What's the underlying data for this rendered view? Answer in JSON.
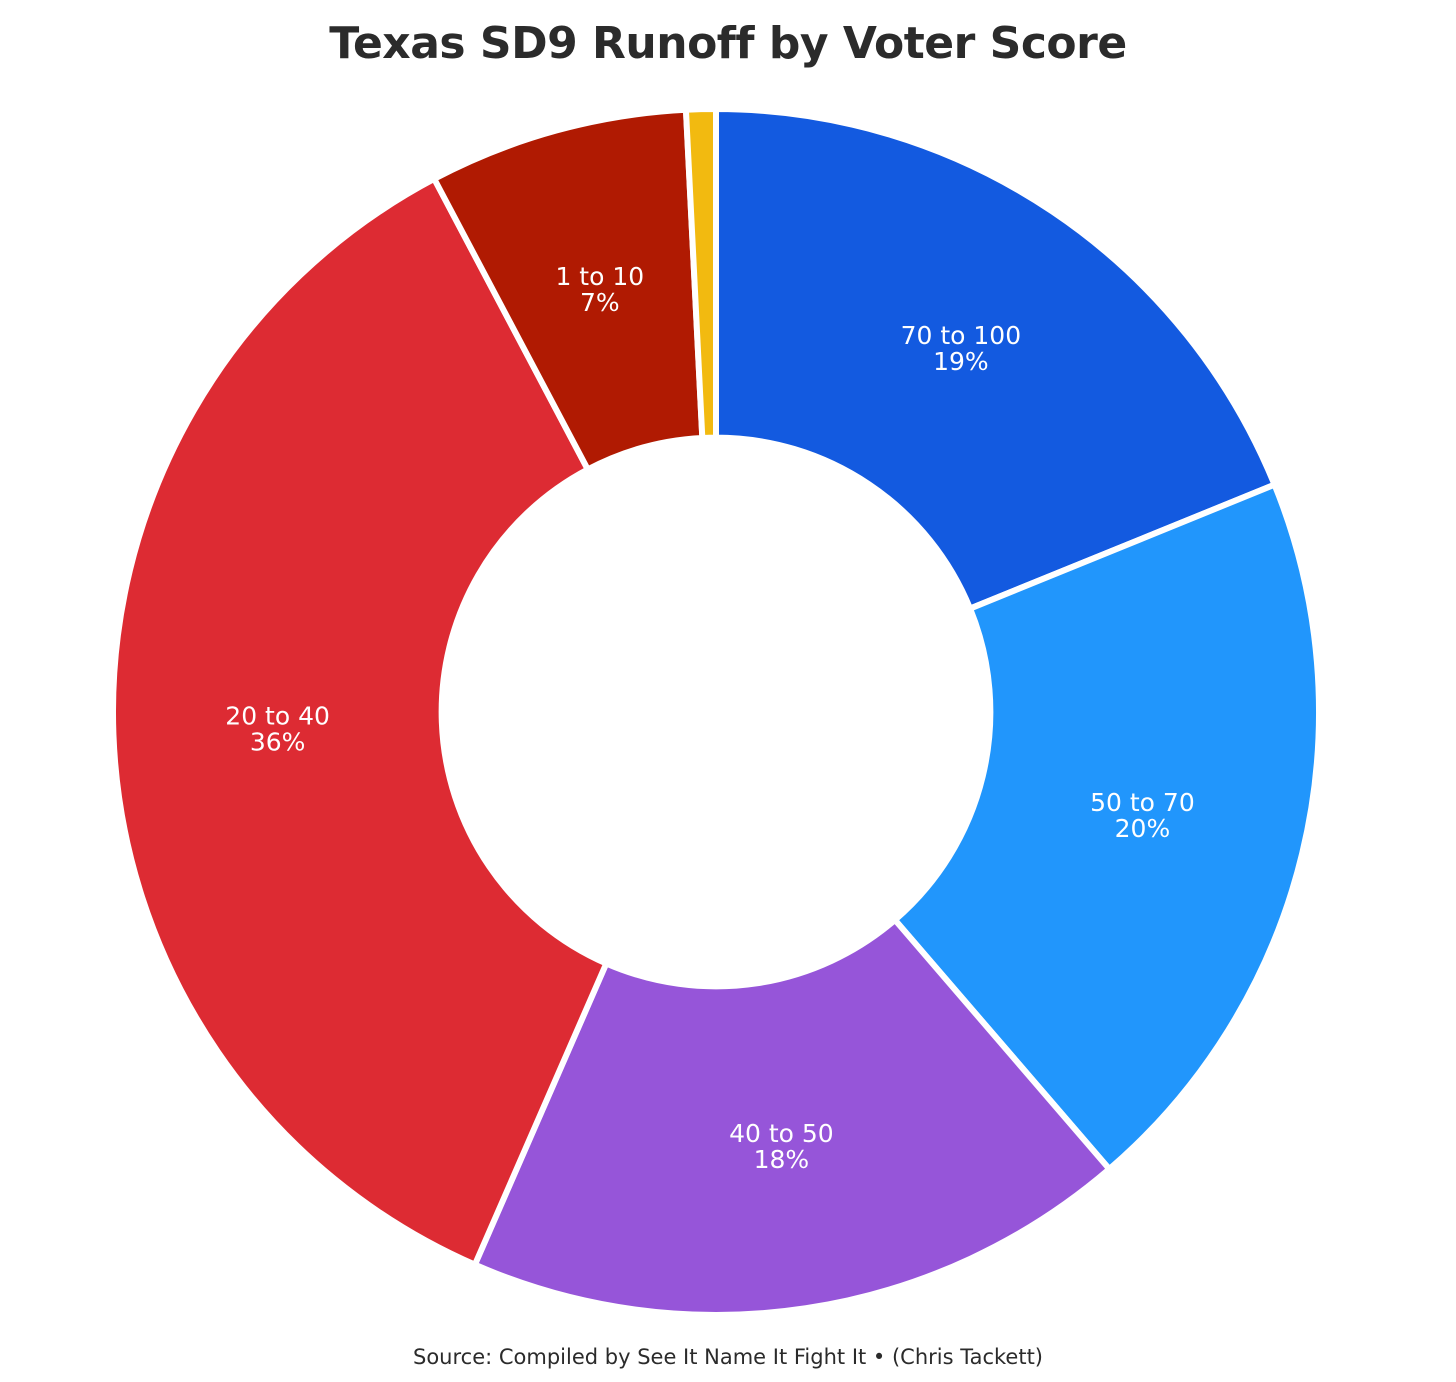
{
  "chart_data": {
    "type": "pie",
    "title": "Texas SD9 Runoff by Voter Score",
    "source": "Source: Compiled by See It Name It Fight It • (Chris Tackett)",
    "start_angle_deg": 0,
    "direction": "clockwise",
    "hole_fraction": 0.455,
    "slices": [
      {
        "label": "70 to 100",
        "value": 19,
        "value_text": "19%",
        "color": "#135AE0"
      },
      {
        "label": "50 to 70",
        "value": 20,
        "value_text": "20%",
        "color": "#2196FC"
      },
      {
        "label": "40 to 50",
        "value": 18,
        "value_text": "18%",
        "color": "#9655D9"
      },
      {
        "label": "20 to 40",
        "value": 36,
        "value_text": "36%",
        "color": "#DD2B33"
      },
      {
        "label": "1 to 10",
        "value": 7,
        "value_text": "7%",
        "color": "#B01A02"
      },
      {
        "label": "",
        "value": 0.8,
        "value_text": "",
        "color": "#F2BA10"
      }
    ]
  }
}
